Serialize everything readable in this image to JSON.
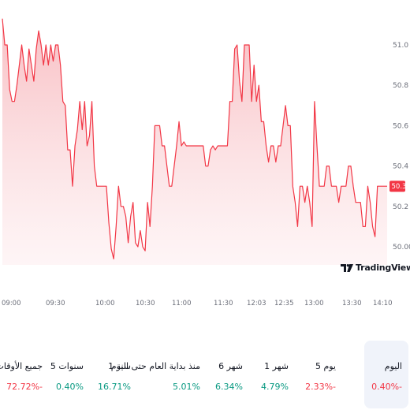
{
  "chart_data": {
    "type": "area",
    "y_ticks": [
      "51.0",
      "50.8",
      "50.6",
      "50.4",
      "50.2",
      "50.00"
    ],
    "ylim": [
      49.91,
      51.2
    ],
    "x_ticks": [
      "09:00",
      "09:30",
      "10:00",
      "10:30",
      "11:00",
      "11:30",
      "12:03",
      "12:35",
      "13:00",
      "13:30",
      "14:10"
    ],
    "series": [
      {
        "values": [
          51.13,
          51.0,
          51.0,
          50.78,
          50.72,
          50.72,
          50.8,
          50.9,
          51.0,
          50.9,
          50.82,
          50.98,
          50.9,
          50.82,
          50.98,
          51.07,
          51.0,
          50.9,
          51.0,
          50.9,
          51.0,
          50.92,
          51.0,
          51.0,
          50.9,
          50.72,
          50.7,
          50.48,
          50.48,
          50.3,
          50.5,
          50.58,
          50.72,
          50.58,
          50.72,
          50.5,
          50.55,
          50.72,
          50.4,
          50.3,
          50.3,
          50.3,
          50.3,
          50.3,
          50.12,
          49.99,
          49.94,
          50.1,
          50.3,
          50.2,
          50.2,
          50.15,
          50.02,
          50.15,
          50.22,
          50.02,
          50.0,
          50.08,
          50.0,
          49.98,
          50.22,
          50.1,
          50.3,
          50.6,
          50.6,
          50.6,
          50.5,
          50.5,
          50.4,
          50.3,
          50.3,
          50.4,
          50.5,
          50.62,
          50.5,
          50.52,
          50.5,
          50.5,
          50.5,
          50.5,
          50.5,
          50.5,
          50.5,
          50.5,
          50.4,
          50.4,
          50.48,
          50.5,
          50.48,
          50.5,
          50.5,
          50.5,
          50.5,
          50.5,
          50.72,
          50.72,
          50.98,
          51.0,
          50.82,
          50.72,
          51.0,
          51.0,
          51.0,
          50.72,
          50.9,
          50.72,
          50.8,
          50.62,
          50.62,
          50.5,
          50.42,
          50.5,
          50.5,
          50.42,
          50.5,
          50.5,
          50.6,
          50.7,
          50.6,
          50.6,
          50.3,
          50.22,
          50.1,
          50.3,
          50.3,
          50.22,
          50.3,
          50.22,
          50.1,
          50.72,
          50.5,
          50.3,
          50.3,
          50.3,
          50.4,
          50.4,
          50.3,
          50.3,
          50.3,
          50.22,
          50.3,
          50.3,
          50.3,
          50.4,
          50.4,
          50.3,
          50.22,
          50.22,
          50.22,
          50.1,
          50.1,
          50.3,
          50.22,
          50.1,
          50.05,
          50.3,
          50.3,
          50.3,
          50.3,
          50.3
        ]
      }
    ],
    "last_value_label": "50.3",
    "line_color": "#f23645",
    "fill_color_top": "#f7b7bc",
    "fill_color_bottom": "#fdebed",
    "grid": false,
    "legend": "none"
  },
  "brand": {
    "name": "TradingView",
    "icon": "tradingview-logo-icon"
  },
  "periods": [
    {
      "key": "all",
      "label": "جميع الأوقات",
      "value": "72.72%-"
    },
    {
      "key": "5y",
      "label": "5 سنوات",
      "value": "0.40%"
    },
    {
      "key": "1y",
      "label": "1 سنة",
      "value": "16.71%"
    },
    {
      "key": "ytd",
      "label": "منذ بداية العام حتى اليوم",
      "value": "5.01%"
    },
    {
      "key": "6m",
      "label": "6 شهر",
      "value": "6.34%"
    },
    {
      "key": "1m",
      "label": "1 شهر",
      "value": "4.79%"
    },
    {
      "key": "5d",
      "label": "5 يوم",
      "value": "2.33%-"
    },
    {
      "key": "1d",
      "label": "اليوم",
      "value": "0.40%-"
    }
  ],
  "colors": {
    "positive": "#089981",
    "negative": "#f23645"
  },
  "active_period": "1d"
}
